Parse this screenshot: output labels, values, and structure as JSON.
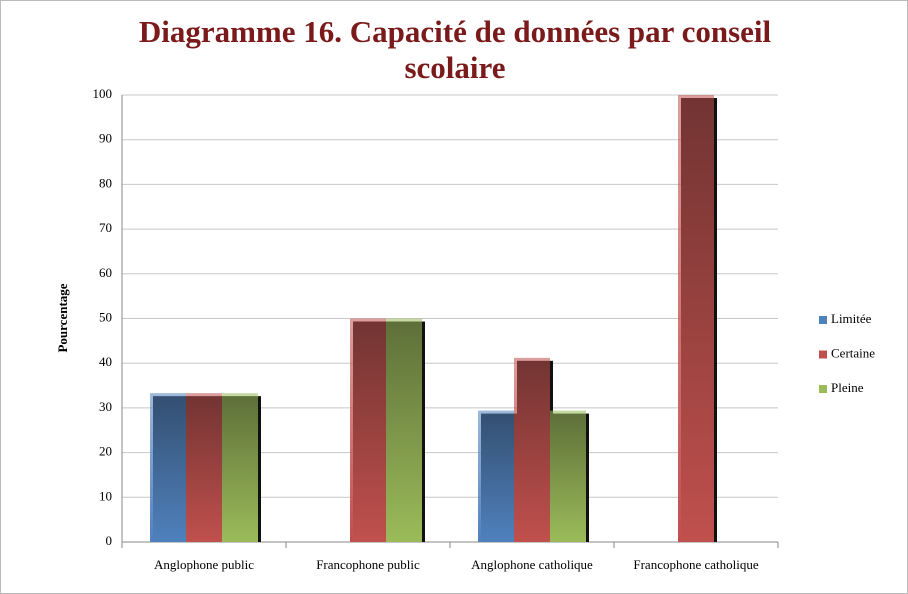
{
  "chart_data": {
    "type": "bar",
    "title": "Diagramme 16. Capacité de données par conseil scolaire",
    "ylabel": "Pourcentage",
    "categories": [
      "Anglophone public",
      "Francophone public",
      "Anglophone catholique",
      "Francophone catholique"
    ],
    "series": [
      {
        "name": "Limitée",
        "color": "#4f81bd",
        "values": [
          33.3,
          0,
          29.4,
          0
        ]
      },
      {
        "name": "Certaine",
        "color": "#c0504d",
        "values": [
          33.3,
          50,
          41.2,
          100
        ]
      },
      {
        "name": "Pleine",
        "color": "#9bbb59",
        "values": [
          33.3,
          50,
          29.4,
          0
        ]
      }
    ],
    "ylim": [
      0,
      100
    ],
    "yticks": [
      0,
      10,
      20,
      30,
      40,
      50,
      60,
      70,
      80,
      90,
      100
    ],
    "grid": true,
    "legend": "right"
  }
}
